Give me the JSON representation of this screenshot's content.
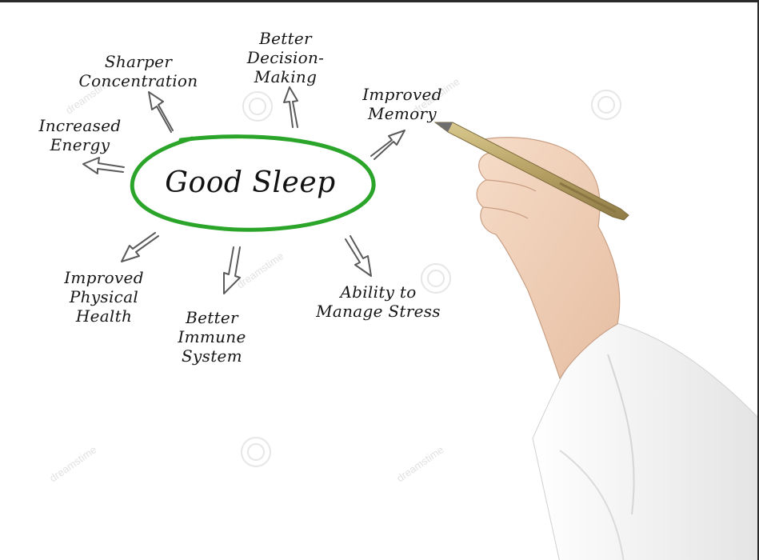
{
  "diagram": {
    "center": "Good Sleep",
    "benefits": [
      {
        "id": "sharper-concentration",
        "text": "Sharper\nConcentration"
      },
      {
        "id": "better-decision-making",
        "text": "Better\nDecision-\nMaking"
      },
      {
        "id": "improved-memory",
        "text": "Improved\nMemory"
      },
      {
        "id": "increased-energy",
        "text": "Increased\nEnergy"
      },
      {
        "id": "improved-physical-health",
        "text": "Improved\nPhysical\nHealth"
      },
      {
        "id": "better-immune-system",
        "text": "Better\nImmune\nSystem"
      },
      {
        "id": "ability-to-manage-stress",
        "text": "Ability to\nManage Stress"
      }
    ]
  },
  "watermark": "dreamstime",
  "colors": {
    "ellipse": "#2aa52a",
    "arrow_stroke": "#5a5a5a",
    "text": "#161616",
    "pen": "#b8a267",
    "sleeve": "#f3f3f3",
    "skin": "#efcfb6"
  }
}
